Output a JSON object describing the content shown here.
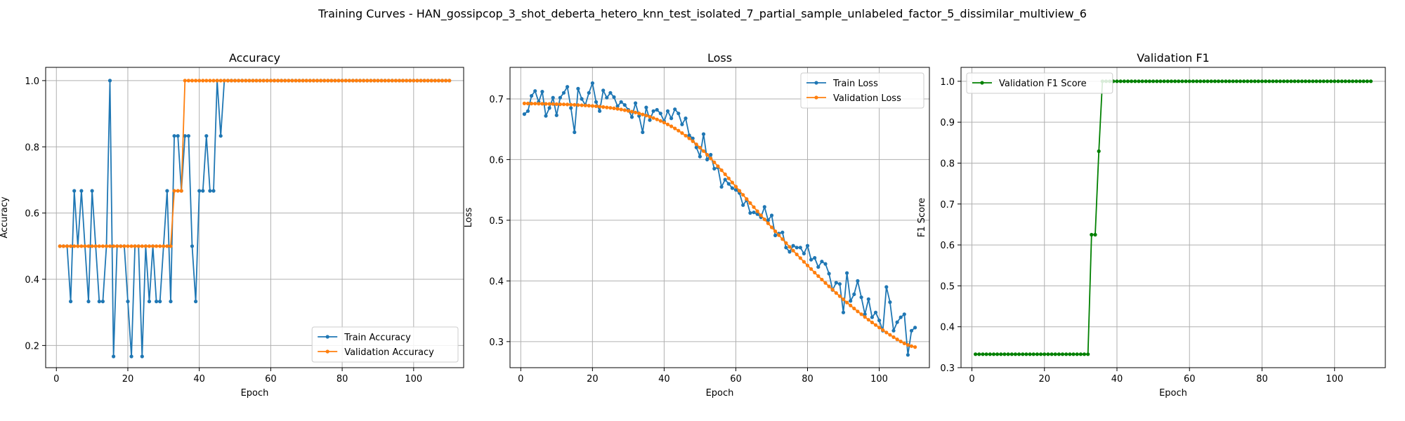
{
  "figure": {
    "suptitle": "Training Curves - HAN_gossipcop_3_shot_deberta_hetero_knn_test_isolated_7_partial_sample_unlabeled_factor_5_dissimilar_multiview_6"
  },
  "colors": {
    "blue": "#1f77b4",
    "orange": "#ff7f0e",
    "green": "#008000",
    "grid": "#b0b0b0"
  },
  "chart_data": [
    {
      "type": "line",
      "title": "Accuracy",
      "xlabel": "Epoch",
      "ylabel": "Accuracy",
      "xlim": [
        -3,
        114
      ],
      "ylim": [
        0.133,
        1.04
      ],
      "xticks": [
        0,
        20,
        40,
        60,
        80,
        100
      ],
      "yticks": [
        0.2,
        0.4,
        0.6,
        0.8,
        1.0
      ],
      "ytick_labels": [
        "0.2",
        "0.4",
        "0.6",
        "0.8",
        "1.0"
      ],
      "legend_position": "lower-right",
      "series": [
        {
          "name": "Train Accuracy",
          "color": "#1f77b4",
          "x_start": 1,
          "values": [
            0.5,
            0.5,
            0.5,
            0.333,
            0.667,
            0.5,
            0.667,
            0.5,
            0.333,
            0.667,
            0.5,
            0.333,
            0.333,
            0.5,
            1.0,
            0.167,
            0.5,
            0.5,
            0.5,
            0.333,
            0.167,
            0.5,
            0.5,
            0.167,
            0.5,
            0.333,
            0.5,
            0.333,
            0.333,
            0.5,
            0.667,
            0.333,
            0.833,
            0.833,
            0.667,
            0.833,
            0.833,
            0.5,
            0.333,
            0.667,
            0.667,
            0.833,
            0.667,
            0.667,
            1.0,
            0.833,
            1.0,
            1.0,
            1.0,
            1.0,
            1.0,
            1.0,
            1.0,
            1.0,
            1.0,
            1.0,
            1.0,
            1.0,
            1.0,
            1.0,
            1.0,
            1.0,
            1.0,
            1.0,
            1.0,
            1.0,
            1.0,
            1.0,
            1.0,
            1.0,
            1.0,
            1.0,
            1.0,
            1.0,
            1.0,
            1.0,
            1.0,
            1.0,
            1.0,
            1.0,
            1.0,
            1.0,
            1.0,
            1.0,
            1.0,
            1.0,
            1.0,
            1.0,
            1.0,
            1.0,
            1.0,
            1.0,
            1.0,
            1.0,
            1.0,
            1.0,
            1.0,
            1.0,
            1.0,
            1.0,
            1.0,
            1.0,
            1.0,
            1.0,
            1.0,
            1.0,
            1.0,
            1.0,
            1.0,
            1.0
          ]
        },
        {
          "name": "Validation Accuracy",
          "color": "#ff7f0e",
          "x_start": 1,
          "values": [
            0.5,
            0.5,
            0.5,
            0.5,
            0.5,
            0.5,
            0.5,
            0.5,
            0.5,
            0.5,
            0.5,
            0.5,
            0.5,
            0.5,
            0.5,
            0.5,
            0.5,
            0.5,
            0.5,
            0.5,
            0.5,
            0.5,
            0.5,
            0.5,
            0.5,
            0.5,
            0.5,
            0.5,
            0.5,
            0.5,
            0.5,
            0.5,
            0.667,
            0.667,
            0.667,
            1.0,
            1.0,
            1.0,
            1.0,
            1.0,
            1.0,
            1.0,
            1.0,
            1.0,
            1.0,
            1.0,
            1.0,
            1.0,
            1.0,
            1.0,
            1.0,
            1.0,
            1.0,
            1.0,
            1.0,
            1.0,
            1.0,
            1.0,
            1.0,
            1.0,
            1.0,
            1.0,
            1.0,
            1.0,
            1.0,
            1.0,
            1.0,
            1.0,
            1.0,
            1.0,
            1.0,
            1.0,
            1.0,
            1.0,
            1.0,
            1.0,
            1.0,
            1.0,
            1.0,
            1.0,
            1.0,
            1.0,
            1.0,
            1.0,
            1.0,
            1.0,
            1.0,
            1.0,
            1.0,
            1.0,
            1.0,
            1.0,
            1.0,
            1.0,
            1.0,
            1.0,
            1.0,
            1.0,
            1.0,
            1.0,
            1.0,
            1.0,
            1.0,
            1.0,
            1.0,
            1.0,
            1.0,
            1.0,
            1.0,
            1.0
          ]
        }
      ]
    },
    {
      "type": "line",
      "title": "Loss",
      "xlabel": "Epoch",
      "ylabel": "Loss",
      "xlim": [
        -3,
        114
      ],
      "ylim": [
        0.257,
        0.752
      ],
      "xticks": [
        0,
        20,
        40,
        60,
        80,
        100
      ],
      "yticks": [
        0.3,
        0.4,
        0.5,
        0.6,
        0.7
      ],
      "ytick_labels": [
        "0.3",
        "0.4",
        "0.5",
        "0.6",
        "0.7"
      ],
      "legend_position": "upper-right",
      "series": [
        {
          "name": "Train Loss",
          "color": "#1f77b4",
          "x_start": 1,
          "values": [
            0.675,
            0.68,
            0.705,
            0.713,
            0.695,
            0.712,
            0.672,
            0.685,
            0.702,
            0.673,
            0.702,
            0.71,
            0.72,
            0.685,
            0.645,
            0.717,
            0.7,
            0.69,
            0.71,
            0.726,
            0.695,
            0.68,
            0.714,
            0.702,
            0.71,
            0.703,
            0.688,
            0.695,
            0.69,
            0.682,
            0.67,
            0.693,
            0.672,
            0.645,
            0.686,
            0.665,
            0.68,
            0.682,
            0.676,
            0.663,
            0.68,
            0.668,
            0.683,
            0.676,
            0.658,
            0.668,
            0.64,
            0.635,
            0.62,
            0.605,
            0.642,
            0.6,
            0.608,
            0.585,
            0.587,
            0.555,
            0.567,
            0.56,
            0.553,
            0.55,
            0.545,
            0.525,
            0.533,
            0.512,
            0.513,
            0.51,
            0.505,
            0.522,
            0.5,
            0.508,
            0.475,
            0.478,
            0.48,
            0.455,
            0.448,
            0.458,
            0.455,
            0.455,
            0.445,
            0.458,
            0.435,
            0.438,
            0.423,
            0.432,
            0.428,
            0.412,
            0.385,
            0.397,
            0.395,
            0.348,
            0.413,
            0.367,
            0.378,
            0.4,
            0.373,
            0.345,
            0.37,
            0.34,
            0.348,
            0.335,
            0.318,
            0.39,
            0.365,
            0.318,
            0.332,
            0.34,
            0.345,
            0.278,
            0.318,
            0.323
          ]
        },
        {
          "name": "Validation Loss",
          "color": "#ff7f0e",
          "x_start": 1,
          "values": [
            0.6925,
            0.6924,
            0.6923,
            0.6922,
            0.6921,
            0.692,
            0.6919,
            0.6918,
            0.6916,
            0.6914,
            0.6912,
            0.691,
            0.6908,
            0.6905,
            0.6902,
            0.6899,
            0.6896,
            0.6892,
            0.6888,
            0.6884,
            0.6879,
            0.6873,
            0.6867,
            0.686,
            0.6853,
            0.6845,
            0.6836,
            0.6826,
            0.6815,
            0.6803,
            0.679,
            0.6776,
            0.6761,
            0.6744,
            0.6726,
            0.6706,
            0.6685,
            0.6662,
            0.6637,
            0.661,
            0.658,
            0.6548,
            0.6514,
            0.6477,
            0.6437,
            0.6395,
            0.635,
            0.6302,
            0.6251,
            0.6197,
            0.614,
            0.608,
            0.6018,
            0.5955,
            0.589,
            0.5824,
            0.5757,
            0.569,
            0.5622,
            0.5554,
            0.5486,
            0.5418,
            0.535,
            0.5283,
            0.5216,
            0.5149,
            0.5082,
            0.5015,
            0.4949,
            0.4883,
            0.4818,
            0.4753,
            0.4689,
            0.4625,
            0.4562,
            0.4499,
            0.4437,
            0.4376,
            0.4315,
            0.4255,
            0.4196,
            0.4137,
            0.4079,
            0.4022,
            0.3966,
            0.391,
            0.3855,
            0.3801,
            0.3748,
            0.3696,
            0.3645,
            0.3595,
            0.3546,
            0.3498,
            0.3451,
            0.3405,
            0.336,
            0.3316,
            0.3273,
            0.3231,
            0.319,
            0.315,
            0.3111,
            0.3073,
            0.3037,
            0.3003,
            0.297,
            0.2945,
            0.2925,
            0.291
          ]
        }
      ]
    },
    {
      "type": "line",
      "title": "Validation F1",
      "xlabel": "Epoch",
      "ylabel": "F1 Score",
      "xlim": [
        -3,
        114
      ],
      "ylim": [
        0.3,
        1.034
      ],
      "xticks": [
        0,
        20,
        40,
        60,
        80,
        100
      ],
      "yticks": [
        0.3,
        0.4,
        0.5,
        0.6,
        0.7,
        0.8,
        0.9,
        1.0
      ],
      "ytick_labels": [
        "0.3",
        "0.4",
        "0.5",
        "0.6",
        "0.7",
        "0.8",
        "0.9",
        "1.0"
      ],
      "legend_position": "upper-left",
      "series": [
        {
          "name": "Validation F1 Score",
          "color": "#008000",
          "x_start": 1,
          "values": [
            0.333,
            0.333,
            0.333,
            0.333,
            0.333,
            0.333,
            0.333,
            0.333,
            0.333,
            0.333,
            0.333,
            0.333,
            0.333,
            0.333,
            0.333,
            0.333,
            0.333,
            0.333,
            0.333,
            0.333,
            0.333,
            0.333,
            0.333,
            0.333,
            0.333,
            0.333,
            0.333,
            0.333,
            0.333,
            0.333,
            0.333,
            0.333,
            0.625,
            0.625,
            0.829,
            1.0,
            1.0,
            1.0,
            1.0,
            1.0,
            1.0,
            1.0,
            1.0,
            1.0,
            1.0,
            1.0,
            1.0,
            1.0,
            1.0,
            1.0,
            1.0,
            1.0,
            1.0,
            1.0,
            1.0,
            1.0,
            1.0,
            1.0,
            1.0,
            1.0,
            1.0,
            1.0,
            1.0,
            1.0,
            1.0,
            1.0,
            1.0,
            1.0,
            1.0,
            1.0,
            1.0,
            1.0,
            1.0,
            1.0,
            1.0,
            1.0,
            1.0,
            1.0,
            1.0,
            1.0,
            1.0,
            1.0,
            1.0,
            1.0,
            1.0,
            1.0,
            1.0,
            1.0,
            1.0,
            1.0,
            1.0,
            1.0,
            1.0,
            1.0,
            1.0,
            1.0,
            1.0,
            1.0,
            1.0,
            1.0,
            1.0,
            1.0,
            1.0,
            1.0,
            1.0,
            1.0,
            1.0,
            1.0,
            1.0,
            1.0
          ]
        }
      ]
    }
  ]
}
